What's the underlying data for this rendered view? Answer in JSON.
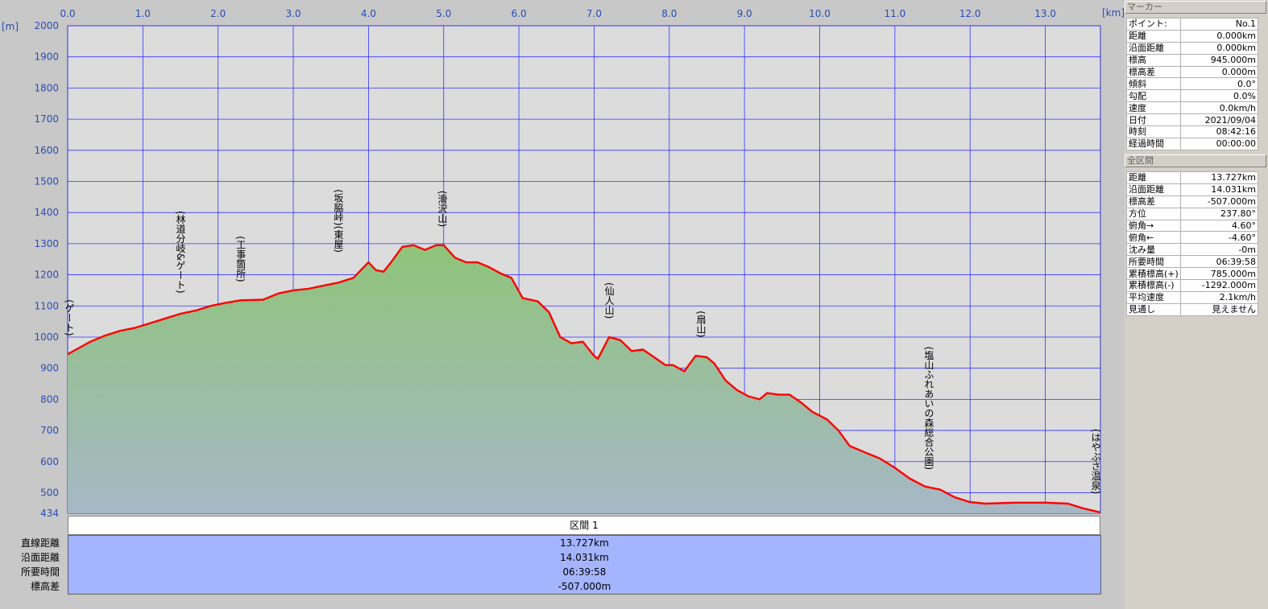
{
  "chart_data": {
    "type": "area",
    "x_unit": "[km]",
    "y_unit": "[m]",
    "xlim": [
      0,
      13.727
    ],
    "ylim": [
      434,
      2000
    ],
    "x_ticks": [
      "0.0",
      "1.0",
      "2.0",
      "3.0",
      "4.0",
      "5.0",
      "6.0",
      "7.0",
      "8.0",
      "9.0",
      "10.0",
      "11.0",
      "12.0",
      "13.0"
    ],
    "y_ticks": [
      "434",
      "500",
      "600",
      "700",
      "800",
      "900",
      "1000",
      "1100",
      "1200",
      "1300",
      "1400",
      "1500",
      "1600",
      "1700",
      "1800",
      "1900",
      "2000"
    ],
    "profile": [
      [
        0.0,
        945
      ],
      [
        0.15,
        965
      ],
      [
        0.3,
        985
      ],
      [
        0.5,
        1005
      ],
      [
        0.7,
        1020
      ],
      [
        0.9,
        1030
      ],
      [
        1.1,
        1045
      ],
      [
        1.3,
        1060
      ],
      [
        1.5,
        1075
      ],
      [
        1.7,
        1085
      ],
      [
        1.9,
        1100
      ],
      [
        2.1,
        1110
      ],
      [
        2.3,
        1118
      ],
      [
        2.6,
        1120
      ],
      [
        2.8,
        1140
      ],
      [
        3.0,
        1150
      ],
      [
        3.2,
        1155
      ],
      [
        3.4,
        1165
      ],
      [
        3.6,
        1175
      ],
      [
        3.8,
        1190
      ],
      [
        4.0,
        1240
      ],
      [
        4.1,
        1215
      ],
      [
        4.2,
        1210
      ],
      [
        4.3,
        1240
      ],
      [
        4.45,
        1290
      ],
      [
        4.6,
        1295
      ],
      [
        4.75,
        1280
      ],
      [
        4.9,
        1295
      ],
      [
        5.0,
        1295
      ],
      [
        5.15,
        1255
      ],
      [
        5.3,
        1240
      ],
      [
        5.45,
        1240
      ],
      [
        5.6,
        1225
      ],
      [
        5.75,
        1205
      ],
      [
        5.9,
        1190
      ],
      [
        6.05,
        1125
      ],
      [
        6.25,
        1115
      ],
      [
        6.4,
        1080
      ],
      [
        6.55,
        1000
      ],
      [
        6.7,
        980
      ],
      [
        6.85,
        985
      ],
      [
        7.0,
        940
      ],
      [
        7.05,
        930
      ],
      [
        7.2,
        1000
      ],
      [
        7.35,
        990
      ],
      [
        7.5,
        955
      ],
      [
        7.65,
        960
      ],
      [
        7.8,
        935
      ],
      [
        7.95,
        910
      ],
      [
        8.05,
        910
      ],
      [
        8.2,
        890
      ],
      [
        8.35,
        940
      ],
      [
        8.5,
        935
      ],
      [
        8.6,
        915
      ],
      [
        8.75,
        860
      ],
      [
        8.9,
        830
      ],
      [
        9.05,
        810
      ],
      [
        9.2,
        800
      ],
      [
        9.3,
        820
      ],
      [
        9.45,
        815
      ],
      [
        9.6,
        815
      ],
      [
        9.75,
        790
      ],
      [
        9.9,
        760
      ],
      [
        10.1,
        735
      ],
      [
        10.25,
        700
      ],
      [
        10.4,
        650
      ],
      [
        10.6,
        630
      ],
      [
        10.8,
        610
      ],
      [
        11.0,
        580
      ],
      [
        11.2,
        545
      ],
      [
        11.4,
        520
      ],
      [
        11.6,
        510
      ],
      [
        11.8,
        485
      ],
      [
        12.0,
        470
      ],
      [
        12.2,
        465
      ],
      [
        12.6,
        468
      ],
      [
        13.0,
        468
      ],
      [
        13.3,
        465
      ],
      [
        13.5,
        450
      ],
      [
        13.727,
        437
      ]
    ],
    "annotations": [
      {
        "x": 0.0,
        "y": 945,
        "label": "(ゲート)"
      },
      {
        "x": 1.5,
        "y": 1075,
        "label": "(林道分岐&ゲート)"
      },
      {
        "x": 2.3,
        "y": 1118,
        "label": "(工事箇所)"
      },
      {
        "x": 3.6,
        "y": 1175,
        "label": "(坂脇峠)(東屋)"
      },
      {
        "x": 4.98,
        "y": 1295,
        "label": "(滑沢山)"
      },
      {
        "x": 7.2,
        "y": 1000,
        "label": "(仙人山)"
      },
      {
        "x": 8.42,
        "y": 940,
        "label": "(扇山)"
      },
      {
        "x": 11.45,
        "y": 515,
        "label": "(塩山ふれあいの森総合公園)"
      },
      {
        "x": 13.72,
        "y": 437,
        "label": "(はやぶさ温泉)"
      }
    ],
    "colors": {
      "line": "#ff0000",
      "fill_top": "#8fc47a",
      "fill_bottom": "#a6b8c6",
      "grid": "#3333ff",
      "plot_bg": "#dcdcdc",
      "axis_text": "#2a4cb0"
    }
  },
  "marker": {
    "title": "マーカー",
    "rows": [
      {
        "k": "ポイント:",
        "v": "No.1"
      },
      {
        "k": "距離",
        "v": "0.000km"
      },
      {
        "k": "沿面距離",
        "v": "0.000km"
      },
      {
        "k": "標高",
        "v": "945.000m"
      },
      {
        "k": "標高差",
        "v": "0.000m"
      },
      {
        "k": "傾斜",
        "v": "0.0°"
      },
      {
        "k": "勾配",
        "v": "0.0%"
      },
      {
        "k": "速度",
        "v": "0.0km/h"
      },
      {
        "k": "日付",
        "v": "2021/09/04"
      },
      {
        "k": "時刻",
        "v": "08:42:16"
      },
      {
        "k": "経過時間",
        "v": "00:00:00"
      }
    ]
  },
  "section": {
    "title": "全区間",
    "rows": [
      {
        "k": "距離",
        "v": "13.727km"
      },
      {
        "k": "沿面距離",
        "v": "14.031km"
      },
      {
        "k": "標高差",
        "v": "-507.000m"
      },
      {
        "k": "方位",
        "v": "237.80°"
      },
      {
        "k": "俯角→",
        "v": "4.60°"
      },
      {
        "k": "俯角←",
        "v": "-4.60°"
      },
      {
        "k": "沈み量",
        "v": "-0m"
      },
      {
        "k": "所要時間",
        "v": "06:39:58"
      },
      {
        "k": "累積標高(+)",
        "v": "785.000m"
      },
      {
        "k": "累積標高(-)",
        "v": "-1292.000m"
      },
      {
        "k": "平均速度",
        "v": "2.1km/h"
      },
      {
        "k": "見通し",
        "v": "見えません"
      }
    ]
  },
  "segment": {
    "header": "区間 1",
    "rows": [
      {
        "label": "直線距離",
        "value": "13.727km"
      },
      {
        "label": "沿面距離",
        "value": "14.031km"
      },
      {
        "label": "所要時間",
        "value": "06:39:58"
      },
      {
        "label": "標高差",
        "value": "-507.000m"
      }
    ]
  }
}
